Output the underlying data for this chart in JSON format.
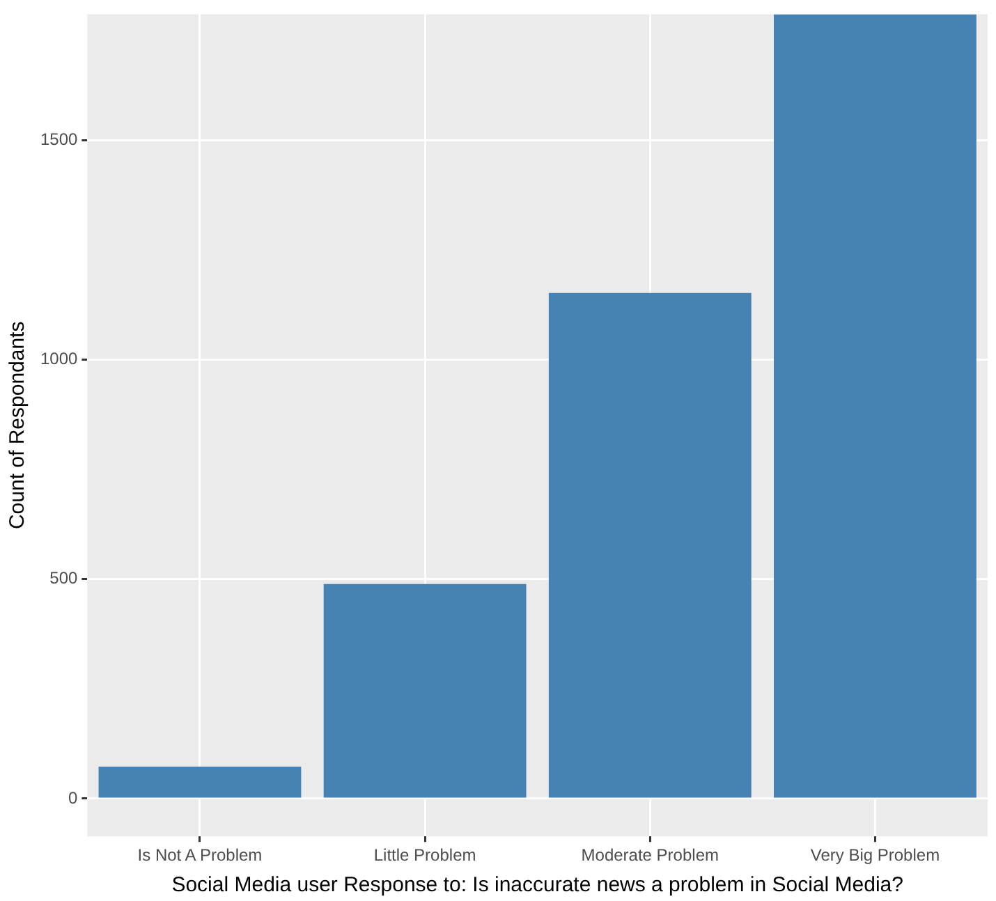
{
  "chart_data": {
    "type": "bar",
    "xlabel": "Social Media user Response to: Is inaccurate news a problem in Social Media?",
    "ylabel": "Count of Respondants",
    "categories": [
      "Is Not A Problem",
      "Little Problem",
      "Moderate Problem",
      "Very Big Problem"
    ],
    "values": [
      73,
      489,
      1152,
      1787
    ],
    "color": "#4682b4",
    "ylim": [
      -86,
      1787
    ],
    "yticks": [
      0,
      500,
      1000,
      1500
    ],
    "grid": true,
    "legend": false
  }
}
